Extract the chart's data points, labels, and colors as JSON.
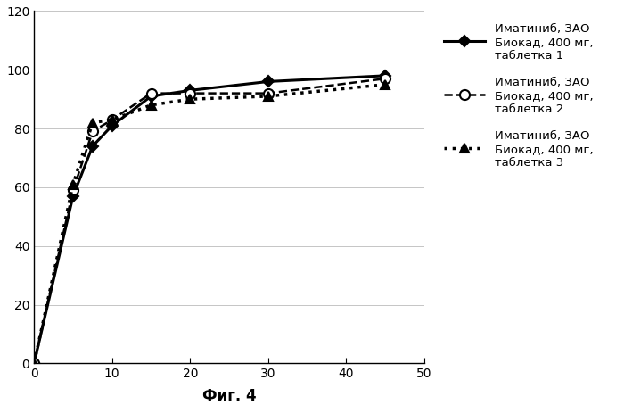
{
  "series1": {
    "x": [
      0,
      5,
      7.5,
      10,
      15,
      20,
      30,
      45
    ],
    "y": [
      0,
      57,
      74,
      81,
      91,
      93,
      96,
      98
    ],
    "label": "Иматиниб, ЗАО\nБиокад, 400 мг,\nтаблетка 1",
    "color": "#000000",
    "linestyle": "-",
    "linewidth": 2.2,
    "marker": "D",
    "markersize": 6,
    "markerfacecolor": "#000000"
  },
  "series2": {
    "x": [
      0,
      5,
      7.5,
      10,
      15,
      20,
      30,
      45
    ],
    "y": [
      0,
      59,
      79,
      83,
      92,
      92,
      92,
      97
    ],
    "label": "Иматиниб, ЗАО\nБиокад, 400 мг,\nтаблетка 2",
    "color": "#000000",
    "linestyle": "--",
    "linewidth": 1.8,
    "marker": "o",
    "markersize": 8,
    "markerfacecolor": "#ffffff"
  },
  "series3": {
    "x": [
      0,
      5,
      7.5,
      10,
      15,
      20,
      30,
      45
    ],
    "y": [
      0,
      61,
      82,
      83,
      88,
      90,
      91,
      95
    ],
    "label": "Иматиниб, ЗАО\nБиокад, 400 мг,\nтаблетка 3",
    "color": "#000000",
    "linestyle": ":",
    "linewidth": 2.5,
    "marker": "^",
    "markersize": 7,
    "markerfacecolor": "#000000"
  },
  "xlim": [
    0,
    50
  ],
  "ylim": [
    0,
    120
  ],
  "xticks": [
    0,
    10,
    20,
    30,
    40,
    50
  ],
  "yticks": [
    0,
    20,
    40,
    60,
    80,
    100,
    120
  ],
  "xlabel": "Фиг. 4",
  "background_color": "#ffffff",
  "figsize": [
    7.0,
    4.63
  ],
  "dpi": 100
}
